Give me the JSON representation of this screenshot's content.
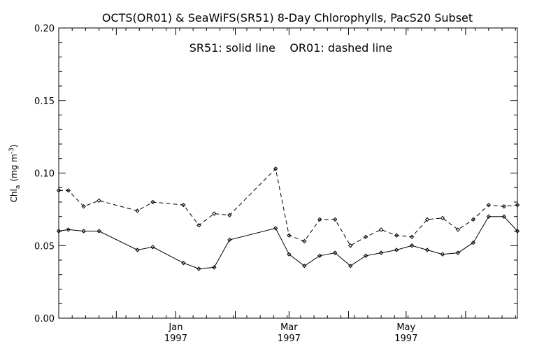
{
  "chart_data": {
    "type": "line",
    "title": "OCTS(OR01) & SeaWiFS(SR51) 8-Day Chlorophylls, PacS20 Subset",
    "annotation": "SR51: solid line    OR01: dashed line",
    "ylabel_main": "Chl",
    "ylabel_sub": "a",
    "ylabel_units": "(mg m",
    "ylabel_exp": "-3",
    "ylabel_close": ")",
    "xlim": [
      "1996-11-01",
      "1997-06-28"
    ],
    "ylim": [
      0.0,
      0.2
    ],
    "grid": false,
    "y_ticks": [
      {
        "value": 0.0,
        "label": "0.00"
      },
      {
        "value": 0.05,
        "label": "0.05"
      },
      {
        "value": 0.1,
        "label": "0.10"
      },
      {
        "value": 0.15,
        "label": "0.15"
      },
      {
        "value": 0.2,
        "label": "0.20"
      }
    ],
    "x_major_ticks": [
      {
        "date": "1997-01-01",
        "label": "Jan",
        "year": "1997"
      },
      {
        "date": "1997-03-01",
        "label": "Mar",
        "year": "1997"
      },
      {
        "date": "1997-05-01",
        "label": "May",
        "year": "1997"
      }
    ],
    "x_minor_ticks": [
      "1996-12-01",
      "1997-02-01",
      "1997-04-01",
      "1997-06-01"
    ],
    "series": [
      {
        "style": "solid",
        "points": [
          {
            "x": "1996-11-01",
            "y": 0.06
          },
          {
            "x": "1996-11-06",
            "y": 0.061
          },
          {
            "x": "1996-11-14",
            "y": 0.06
          },
          {
            "x": "1996-11-22",
            "y": 0.06
          },
          {
            "x": "1996-12-12",
            "y": 0.047
          },
          {
            "x": "1996-12-20",
            "y": 0.049
          },
          {
            "x": "1997-01-05",
            "y": 0.038
          },
          {
            "x": "1997-01-13",
            "y": 0.034
          },
          {
            "x": "1997-01-21",
            "y": 0.035
          },
          {
            "x": "1997-01-29",
            "y": 0.054
          },
          {
            "x": "1997-02-22",
            "y": 0.062
          },
          {
            "x": "1997-03-01",
            "y": 0.044
          },
          {
            "x": "1997-03-09",
            "y": 0.036
          },
          {
            "x": "1997-03-17",
            "y": 0.043
          },
          {
            "x": "1997-03-25",
            "y": 0.045
          },
          {
            "x": "1997-04-02",
            "y": 0.036
          },
          {
            "x": "1997-04-10",
            "y": 0.043
          },
          {
            "x": "1997-04-18",
            "y": 0.045
          },
          {
            "x": "1997-04-26",
            "y": 0.047
          },
          {
            "x": "1997-05-04",
            "y": 0.05
          },
          {
            "x": "1997-05-12",
            "y": 0.047
          },
          {
            "x": "1997-05-20",
            "y": 0.044
          },
          {
            "x": "1997-05-28",
            "y": 0.045
          },
          {
            "x": "1997-06-05",
            "y": 0.052
          },
          {
            "x": "1997-06-13",
            "y": 0.07
          },
          {
            "x": "1997-06-21",
            "y": 0.07
          },
          {
            "x": "1997-06-28",
            "y": 0.06
          }
        ]
      },
      {
        "style": "dashed",
        "points": [
          {
            "x": "1996-11-01",
            "y": 0.088
          },
          {
            "x": "1996-11-06",
            "y": 0.088
          },
          {
            "x": "1996-11-14",
            "y": 0.077
          },
          {
            "x": "1996-11-22",
            "y": 0.081
          },
          {
            "x": "1996-12-12",
            "y": 0.074
          },
          {
            "x": "1996-12-20",
            "y": 0.08
          },
          {
            "x": "1997-01-05",
            "y": 0.078
          },
          {
            "x": "1997-01-13",
            "y": 0.064
          },
          {
            "x": "1997-01-21",
            "y": 0.072
          },
          {
            "x": "1997-01-29",
            "y": 0.071
          },
          {
            "x": "1997-02-22",
            "y": 0.103
          },
          {
            "x": "1997-03-01",
            "y": 0.057
          },
          {
            "x": "1997-03-09",
            "y": 0.053
          },
          {
            "x": "1997-03-17",
            "y": 0.068
          },
          {
            "x": "1997-03-25",
            "y": 0.068
          },
          {
            "x": "1997-04-02",
            "y": 0.05
          },
          {
            "x": "1997-04-10",
            "y": 0.056
          },
          {
            "x": "1997-04-18",
            "y": 0.061
          },
          {
            "x": "1997-04-26",
            "y": 0.057
          },
          {
            "x": "1997-05-04",
            "y": 0.056
          },
          {
            "x": "1997-05-12",
            "y": 0.068
          },
          {
            "x": "1997-05-20",
            "y": 0.069
          },
          {
            "x": "1997-05-28",
            "y": 0.061
          },
          {
            "x": "1997-06-05",
            "y": 0.068
          },
          {
            "x": "1997-06-13",
            "y": 0.078
          },
          {
            "x": "1997-06-21",
            "y": 0.077
          },
          {
            "x": "1997-06-28",
            "y": 0.078
          }
        ]
      }
    ]
  }
}
